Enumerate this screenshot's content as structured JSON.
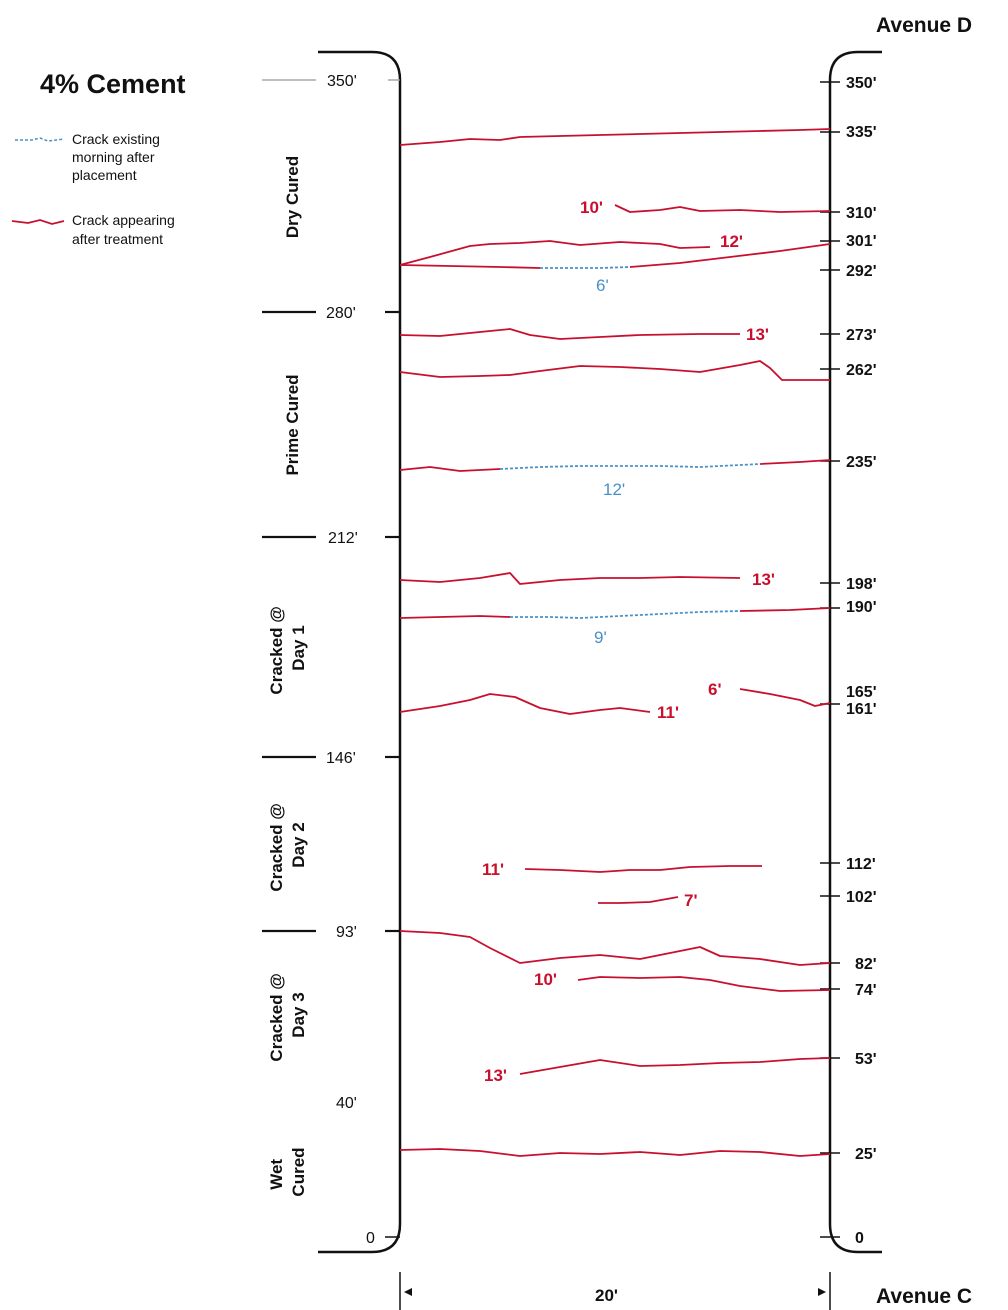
{
  "title": "4% Cement",
  "legend": {
    "existing_lines": [
      "Crack existing",
      "morning after",
      "placement"
    ],
    "treatment_lines": [
      "Crack appearing",
      "after treatment"
    ]
  },
  "road": {
    "top_label": "Avenue D",
    "bottom_label": "Avenue C",
    "width_label": "20'"
  },
  "left_ticks": [
    "350'",
    "280'",
    "212'",
    "146'",
    "93'",
    "40'",
    "0"
  ],
  "right_ticks": [
    "350'",
    "335'",
    "310'",
    "301'",
    "292'",
    "273'",
    "262'",
    "235'",
    "198'",
    "190'",
    "165'",
    "161'",
    "112'",
    "102'",
    "82'",
    "74'",
    "53'",
    "25'",
    "0"
  ],
  "sections": [
    {
      "lines": [
        "Dry Cured"
      ]
    },
    {
      "lines": [
        "Prime Cured"
      ]
    },
    {
      "lines": [
        "Cracked @",
        "Day 1"
      ]
    },
    {
      "lines": [
        "Cracked @",
        "Day 2"
      ]
    },
    {
      "lines": [
        "Cracked @",
        "Day 3"
      ]
    },
    {
      "lines": [
        "Wet",
        "Cured"
      ]
    }
  ],
  "crack_labels_red": [
    "10'",
    "12'",
    "13'",
    "13'",
    "11'",
    "6'",
    "11'",
    "7'",
    "10'",
    "13'"
  ],
  "crack_labels_blue": [
    "6'",
    "12'",
    "9'"
  ],
  "colors": {
    "red": "#c8102e",
    "blue": "#4a90c8",
    "black": "#111111"
  }
}
